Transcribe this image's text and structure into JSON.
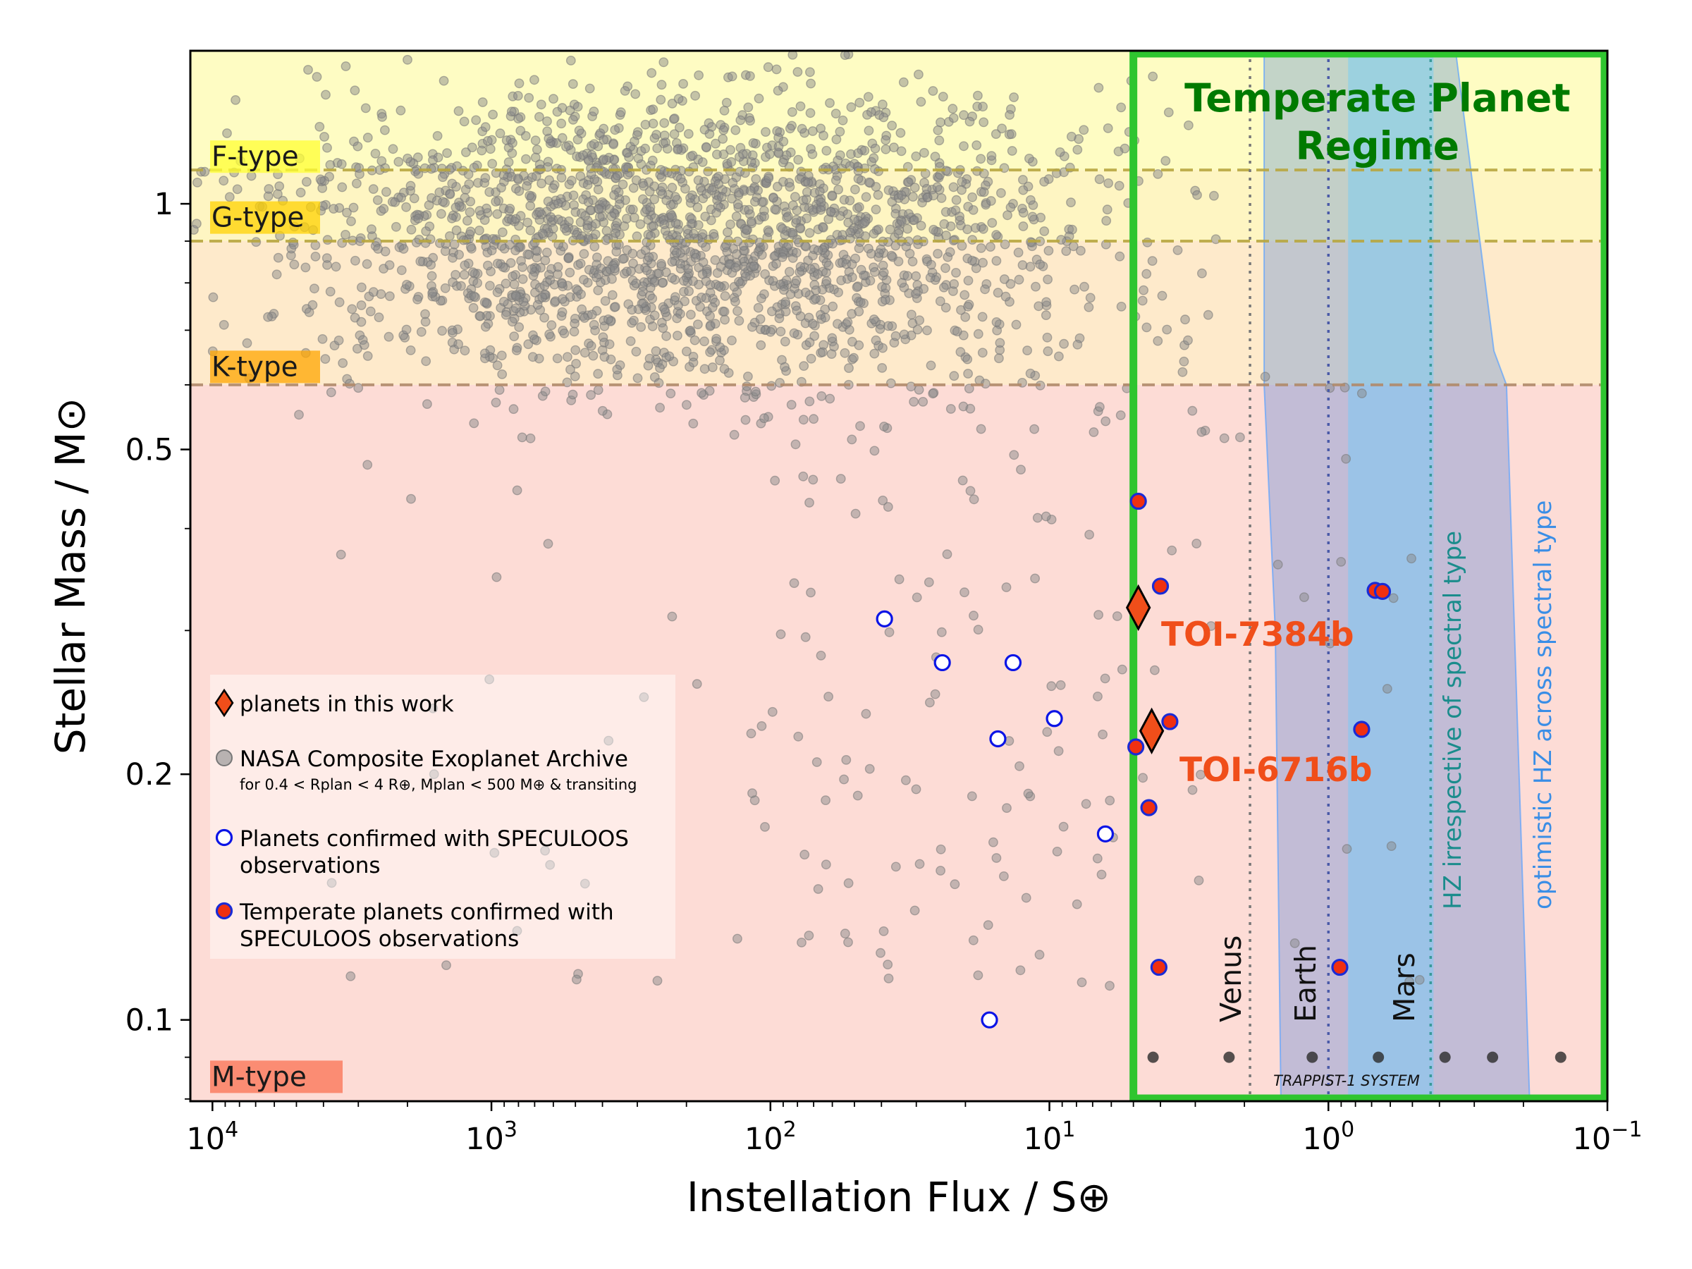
{
  "chart_data": {
    "type": "scatter",
    "xlabel": "Instellation Flux / S⊕",
    "ylabel": "Stellar Mass / M⊙",
    "x_scale": "log",
    "y_scale": "log",
    "x_inverted": true,
    "xlim": [
      12000,
      0.1
    ],
    "ylim": [
      0.0795,
      1.54
    ],
    "x_ticks": [
      {
        "value": 10000,
        "base": "10",
        "exp": "4"
      },
      {
        "value": 1000,
        "base": "10",
        "exp": "3"
      },
      {
        "value": 100,
        "base": "10",
        "exp": "2"
      },
      {
        "value": 10,
        "base": "10",
        "exp": "1"
      },
      {
        "value": 1,
        "base": "10",
        "exp": "0"
      },
      {
        "value": 0.1,
        "base": "10",
        "exp": "−1"
      }
    ],
    "y_ticks": [
      {
        "value": 1,
        "label": "1"
      },
      {
        "value": 0.5,
        "label": "0.5"
      },
      {
        "value": 0.2,
        "label": "0.2"
      },
      {
        "value": 0.1,
        "label": "0.1"
      }
    ],
    "spectral_bands": [
      {
        "label": "F-type",
        "ymin": 1.1,
        "ymax": 1.54,
        "fill": "#fefcc3",
        "label_bg": "#ffff33",
        "label_y": 1.14
      },
      {
        "label": "G-type",
        "ymin": 0.9,
        "ymax": 1.1,
        "fill": "#fef5c2",
        "label_bg": "#ffd200",
        "label_y": 0.96
      },
      {
        "label": "K-type",
        "ymin": 0.6,
        "ymax": 0.9,
        "fill": "#feeacb",
        "label_bg": "#ffa500",
        "label_y": 0.63
      },
      {
        "label": "M-type",
        "ymin": 0.0795,
        "ymax": 0.6,
        "fill": "#fddcd6",
        "label_bg": "#fa7e61",
        "label_y": 0.085
      }
    ],
    "band_boundaries": [
      1.1,
      0.9,
      0.6
    ],
    "temperate_region": {
      "title_line1": "Temperate Planet",
      "title_line2": "Regime",
      "x_left": 5,
      "color": "#2fc52f",
      "title_color": "#007a00"
    },
    "hz_conservative": {
      "label": "HZ irrespective of spectral type",
      "x_from": 0.85,
      "x_to": 0.42,
      "color": "#66ccff",
      "label_color": "#1a8c8c"
    },
    "hz_optimistic": {
      "label": "optimistic HZ across spectral type",
      "color": "#2b6bd9",
      "label_color": "#3a8ee6",
      "outline": [
        [
          1.7,
          1.54
        ],
        [
          1.7,
          0.6
        ],
        [
          1.55,
          0.3
        ],
        [
          1.48,
          0.0795
        ],
        [
          0.19,
          0.0795
        ],
        [
          0.23,
          0.6
        ],
        [
          0.255,
          0.66
        ],
        [
          0.35,
          1.54
        ]
      ]
    },
    "solar_system_lines": [
      {
        "label": "Venus",
        "x": 1.91
      },
      {
        "label": "Earth",
        "x": 1.0
      },
      {
        "label": "Mars",
        "x": 0.43
      }
    ],
    "trappist": {
      "label": "TRAPPIST-1 SYSTEM",
      "y": 0.09,
      "x": [
        4.25,
        2.27,
        1.143,
        0.662,
        0.382,
        0.258,
        0.147
      ]
    },
    "this_work": [
      {
        "name": "TOI-7384b",
        "x": 4.8,
        "y": 0.32
      },
      {
        "name": "TOI-6716b",
        "x": 4.3,
        "y": 0.226
      }
    ],
    "speculoos_temperate": {
      "x": [
        4.8,
        4.0,
        0.68,
        0.64,
        4.9,
        3.7,
        4.4,
        0.76,
        4.05,
        0.91
      ],
      "y": [
        0.432,
        0.34,
        0.336,
        0.335,
        0.216,
        0.232,
        0.182,
        0.227,
        0.116,
        0.116
      ]
    },
    "speculoos_confirmed": {
      "x": [
        39,
        24.2,
        13.5,
        15.3,
        9.6,
        6.3,
        16.4
      ],
      "y": [
        0.31,
        0.274,
        0.274,
        0.221,
        0.234,
        0.169,
        0.1
      ]
    },
    "archive_points": {
      "seed": 7,
      "dense_count": 2100,
      "sparse_count": 260,
      "color": "#8a8a8a"
    },
    "legend": {
      "items": [
        {
          "key": "this_work",
          "text": "planets in this work"
        },
        {
          "key": "archive",
          "text": "NASA Composite Exoplanet Archive",
          "subtext": "for 0.4 < Rplan < 4 R⊕, Mplan < 500 M⊕ & transiting"
        },
        {
          "key": "confirmed",
          "text": "Planets confirmed with SPECULOOS",
          "text2": "observations"
        },
        {
          "key": "temperate",
          "text": "Temperate planets confirmed with",
          "text2": "SPECULOOS observations"
        }
      ]
    },
    "colors": {
      "this_work": "#f04e1a",
      "temperate_fill": "#f03010",
      "temperate_edge": "#1a2bd6",
      "confirmed_edge": "#0a14e6",
      "label": "#f04e1a",
      "band_line": "#b8a640",
      "band_line_k": "#b08a6a"
    }
  }
}
